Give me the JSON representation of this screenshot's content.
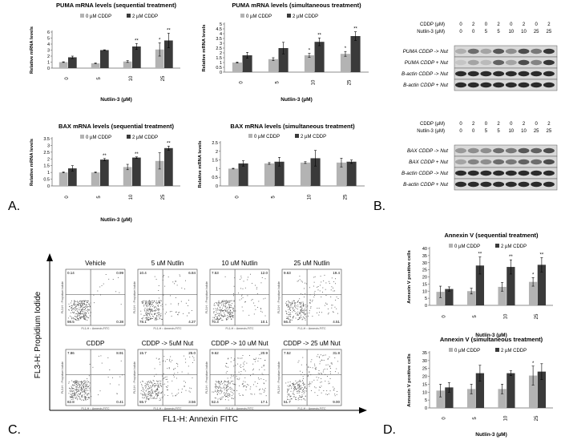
{
  "panel_labels": {
    "a": "A.",
    "b": "B.",
    "c": "C.",
    "d": "D."
  },
  "colors": {
    "light": "#b3b3b3",
    "dark": "#3a3a3a",
    "axis": "#666666",
    "border": "#333333"
  },
  "chart_data": [
    {
      "id": "puma_seq",
      "type": "bar",
      "title": "PUMA mRNA levels (sequential treatment)",
      "legend": [
        "0 µM CDDP",
        "2 µM CDDP"
      ],
      "xlabel": "Nutlin-3 (µM)",
      "ylabel": "Relative mRNA levels",
      "categories": [
        "0",
        "5",
        "10",
        "25"
      ],
      "ylim": [
        0,
        6
      ],
      "yticks": [
        "0",
        "1",
        "2",
        "3",
        "4",
        "5",
        "6"
      ],
      "series": [
        {
          "name": "0 µM CDDP",
          "values": [
            1.0,
            0.8,
            1.1,
            3.1
          ],
          "errors": [
            0.05,
            0.05,
            0.15,
            1.1
          ]
        },
        {
          "name": "2 µM CDDP",
          "values": [
            1.8,
            3.0,
            3.6,
            4.6
          ],
          "errors": [
            0.2,
            0.05,
            0.5,
            1.2
          ]
        }
      ],
      "sig": [
        [
          "",
          ""
        ],
        [
          "",
          ""
        ],
        [
          "",
          "**"
        ],
        [
          "*",
          "**"
        ]
      ]
    },
    {
      "id": "puma_sim",
      "type": "bar",
      "title": "PUMA mRNA levels (simultaneous treatment)",
      "legend": [
        "0 µM CDDP",
        "2 µM CDDP"
      ],
      "xlabel": "Nutlin-3 (µM)",
      "ylabel": "Relative mRNA levels",
      "categories": [
        "0",
        "5",
        "10",
        "25"
      ],
      "ylim": [
        0,
        5
      ],
      "yticks": [
        "0",
        "0.5",
        "1",
        "1.5",
        "2",
        "2.5",
        "3",
        "3.5",
        "4",
        "4.5",
        "5"
      ],
      "series": [
        {
          "name": "0 µM CDDP",
          "values": [
            1.0,
            1.35,
            1.75,
            1.9
          ],
          "errors": [
            0.05,
            0.15,
            0.2,
            0.25
          ]
        },
        {
          "name": "2 µM CDDP",
          "values": [
            1.75,
            2.5,
            3.15,
            3.75
          ],
          "errors": [
            0.3,
            0.6,
            0.4,
            0.45
          ]
        }
      ],
      "sig": [
        [
          "",
          ""
        ],
        [
          "",
          ""
        ],
        [
          "*",
          "**"
        ],
        [
          "*",
          "**"
        ]
      ]
    },
    {
      "id": "bax_seq",
      "type": "bar",
      "title": "BAX mRNA levels (sequential treatment)",
      "legend": [
        "0 µM CDDP",
        "2 µM CDDP"
      ],
      "xlabel": "Nutlin-3 (µM)",
      "ylabel": "Relative mRNA levels",
      "categories": [
        "0",
        "5",
        "10",
        "25"
      ],
      "ylim": [
        0,
        3.5
      ],
      "yticks": [
        "0",
        "0.5",
        "1",
        "1.5",
        "2",
        "2.5",
        "3",
        "3.5"
      ],
      "series": [
        {
          "name": "0 µM CDDP",
          "values": [
            1.0,
            1.0,
            1.4,
            1.85
          ],
          "errors": [
            0.03,
            0.03,
            0.2,
            0.6
          ]
        },
        {
          "name": "2 µM CDDP",
          "values": [
            1.3,
            1.95,
            2.1,
            2.8
          ],
          "errors": [
            0.2,
            0.08,
            0.05,
            0.15
          ]
        }
      ],
      "sig": [
        [
          "",
          ""
        ],
        [
          "",
          "**"
        ],
        [
          "",
          "**"
        ],
        [
          "",
          "**"
        ]
      ]
    },
    {
      "id": "bax_sim",
      "type": "bar",
      "title": "BAX mRNA levels (simultaneous treatment)",
      "legend": [
        "0 µM CDDP",
        "2 µM CDDP"
      ],
      "xlabel": "",
      "ylabel": "Relative mRNA levels",
      "categories": [
        "0",
        "5",
        "10",
        "25"
      ],
      "ylim": [
        0,
        2.5
      ],
      "yticks": [
        "0",
        "0.5",
        "1",
        "1.5",
        "2",
        "2.5"
      ],
      "series": [
        {
          "name": "0 µM CDDP",
          "values": [
            1.0,
            1.3,
            1.35,
            1.35
          ],
          "errors": [
            0.02,
            0.05,
            0.05,
            0.25
          ]
        },
        {
          "name": "2 µM CDDP",
          "values": [
            1.3,
            1.4,
            1.6,
            1.4
          ],
          "errors": [
            0.15,
            0.25,
            0.45,
            0.1
          ]
        }
      ],
      "sig": [
        [
          "",
          ""
        ],
        [
          "",
          ""
        ],
        [
          "",
          ""
        ],
        [
          "",
          ""
        ]
      ]
    },
    {
      "id": "annexin_seq",
      "type": "bar",
      "title": "Annexin V (sequential treatment)",
      "legend": [
        "0 µM CDDP",
        "2 µM CDDP"
      ],
      "xlabel": "Nutlin-3 (µM)",
      "ylabel": "Annexin V positive cells",
      "categories": [
        "0",
        "5",
        "10",
        "25"
      ],
      "ylim": [
        0,
        40
      ],
      "yticks": [
        "0",
        "5",
        "10",
        "15",
        "20",
        "25",
        "30",
        "35",
        "40"
      ],
      "series": [
        {
          "name": "0 µM CDDP",
          "values": [
            9.5,
            10,
            13,
            16.5
          ],
          "errors": [
            4,
            2,
            3,
            3
          ]
        },
        {
          "name": "2 µM CDDP",
          "values": [
            11.5,
            28,
            27,
            28.5
          ],
          "errors": [
            1.5,
            6,
            5,
            5
          ]
        }
      ],
      "sig": [
        [
          "",
          ""
        ],
        [
          "",
          "**"
        ],
        [
          "",
          "**"
        ],
        [
          "*",
          "**"
        ]
      ]
    },
    {
      "id": "annexin_sim",
      "type": "bar",
      "title": "Annexin V (simultaneous treatment)",
      "legend": [
        "0 µM CDDP",
        "2 µM CDDP"
      ],
      "xlabel": "Nutlin-3 (µM)",
      "ylabel": "Annexin V positive cells",
      "categories": [
        "0",
        "5",
        "10",
        "25"
      ],
      "ylim": [
        0,
        35
      ],
      "yticks": [
        "0",
        "5",
        "10",
        "15",
        "20",
        "25",
        "30",
        "35"
      ],
      "series": [
        {
          "name": "0 µM CDDP",
          "values": [
            11,
            12,
            12,
            20.5
          ],
          "errors": [
            4,
            3,
            3,
            6
          ]
        },
        {
          "name": "2 µM CDDP",
          "values": [
            13,
            22,
            22,
            23
          ],
          "errors": [
            3,
            5,
            1.5,
            5
          ]
        }
      ],
      "sig": [
        [
          "",
          ""
        ],
        [
          "",
          ""
        ],
        [
          "",
          ""
        ],
        [
          "*",
          ""
        ]
      ]
    }
  ],
  "blots": [
    {
      "id": "puma_blot",
      "header_rows": [
        {
          "label": "CDDP (µM)",
          "values": [
            "0",
            "2",
            "0",
            "2",
            "0",
            "2",
            "0",
            "2"
          ]
        },
        {
          "label": "Nutlin-3 (µM)",
          "values": [
            "0",
            "0",
            "5",
            "5",
            "10",
            "10",
            "25",
            "25"
          ]
        }
      ],
      "lanes": [
        {
          "label": "PUMA CDDP -> Nut",
          "intensity": [
            0.25,
            0.55,
            0.3,
            0.65,
            0.4,
            0.7,
            0.5,
            0.8
          ]
        },
        {
          "label": "PUMA  CDDP + Nut",
          "intensity": [
            0.15,
            0.3,
            0.2,
            0.6,
            0.3,
            0.7,
            0.45,
            0.8
          ]
        },
        {
          "label": "B-actin CDDP -> Nut",
          "intensity": [
            0.85,
            0.85,
            0.85,
            0.85,
            0.85,
            0.85,
            0.85,
            0.85
          ]
        },
        {
          "label": "B-actin  CDDP + Nut",
          "intensity": [
            0.85,
            0.85,
            0.85,
            0.85,
            0.85,
            0.85,
            0.85,
            0.85
          ]
        }
      ]
    },
    {
      "id": "bax_blot",
      "header_rows": [
        {
          "label": "CDDP (µM)",
          "values": [
            "0",
            "2",
            "0",
            "2",
            "0",
            "2",
            "0",
            "2"
          ]
        },
        {
          "label": "Nutlin-3 (µM)",
          "values": [
            "0",
            "0",
            "5",
            "5",
            "10",
            "10",
            "25",
            "25"
          ]
        }
      ],
      "lanes": [
        {
          "label": "BAX CDDP -> Nut",
          "intensity": [
            0.35,
            0.4,
            0.4,
            0.55,
            0.5,
            0.65,
            0.6,
            0.7
          ]
        },
        {
          "label": "BAX  CDDP + Nut",
          "intensity": [
            0.3,
            0.45,
            0.4,
            0.55,
            0.5,
            0.6,
            0.55,
            0.7
          ]
        },
        {
          "label": "B-actin CDDP -> Nut",
          "intensity": [
            0.85,
            0.85,
            0.85,
            0.85,
            0.85,
            0.85,
            0.85,
            0.85
          ]
        },
        {
          "label": "B-actin  CDDP + Nut",
          "intensity": [
            0.85,
            0.85,
            0.85,
            0.85,
            0.85,
            0.85,
            0.85,
            0.85
          ]
        }
      ]
    }
  ],
  "flow": {
    "ylabel": "FL3-H: Propidium Iodide",
    "xlabel": "FL1-H: Annexin FITC",
    "axis_x_small": "FL1-H :: Annexin-FITC",
    "axis_y_small": "FL3-H :: Propidium Iodide",
    "plots": [
      {
        "label": "Vehicle",
        "quad": [
          "0.14",
          "0.99",
          "98.5",
          "0.38"
        ],
        "spread": 0.1
      },
      {
        "label": "5 uM Nutlin",
        "quad": [
          "10.4",
          "6.84",
          "78.1",
          "4.27"
        ],
        "spread": 0.35
      },
      {
        "label": "10 uM Nutlin",
        "quad": [
          "7.53",
          "12.0",
          "70.3",
          "10.1"
        ],
        "spread": 0.45
      },
      {
        "label": "25 uM Nutlin",
        "quad": [
          "9.63",
          "19.4",
          "66.4",
          "4.51"
        ],
        "spread": 0.55
      },
      {
        "label": "CDDP",
        "quad": [
          "7.86",
          "8.91",
          "82.8",
          "0.41"
        ],
        "spread": 0.15
      },
      {
        "label": "CDDP -> 5uM Nut",
        "quad": [
          "15.7",
          "25.0",
          "55.7",
          "3.56"
        ],
        "spread": 0.6
      },
      {
        "label": "CDDP -> 10 uM Nut",
        "quad": [
          "9.62",
          "20.9",
          "52.4",
          "17.1"
        ],
        "spread": 0.7
      },
      {
        "label": "CDDP -> 25 uM Nut",
        "quad": [
          "7.52",
          "31.8",
          "51.7",
          "9.00"
        ],
        "spread": 0.8
      }
    ]
  }
}
